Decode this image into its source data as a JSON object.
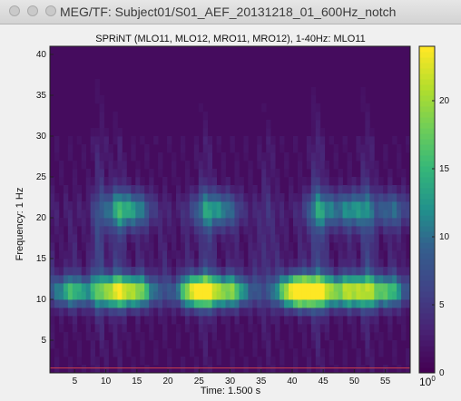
{
  "window": {
    "title": "MEG/TF: Subject01/S01_AEF_20131218_01_600Hz_notch",
    "controls": [
      "close",
      "minimize",
      "zoom"
    ]
  },
  "chart_data": {
    "type": "heatmap",
    "title": "SPRiNT (MLO11, MLO12, MRO11, MRO12), 1-40Hz: MLO11",
    "xlabel": "Time: 1.500 s",
    "ylabel": "Frequency: 1 Hz",
    "xlim": [
      1,
      59
    ],
    "ylim": [
      1,
      41
    ],
    "x_ticks": [
      5,
      10,
      15,
      20,
      25,
      30,
      35,
      40,
      45,
      50,
      55
    ],
    "y_ticks": [
      5,
      10,
      15,
      20,
      25,
      30,
      35,
      40
    ],
    "colormap": "viridis",
    "colorbar": {
      "ticks": [
        0,
        5,
        10,
        15,
        20
      ],
      "range": [
        0,
        24
      ],
      "exponent_label": "10",
      "exponent": "0"
    },
    "notes": "Power concentrated near 10-12 Hz across time with peaks near t=27 s and t=42 s; secondary band near 20 Hz."
  },
  "colors": {
    "background": "#f0f0f0",
    "baseline": "#d0404a"
  }
}
